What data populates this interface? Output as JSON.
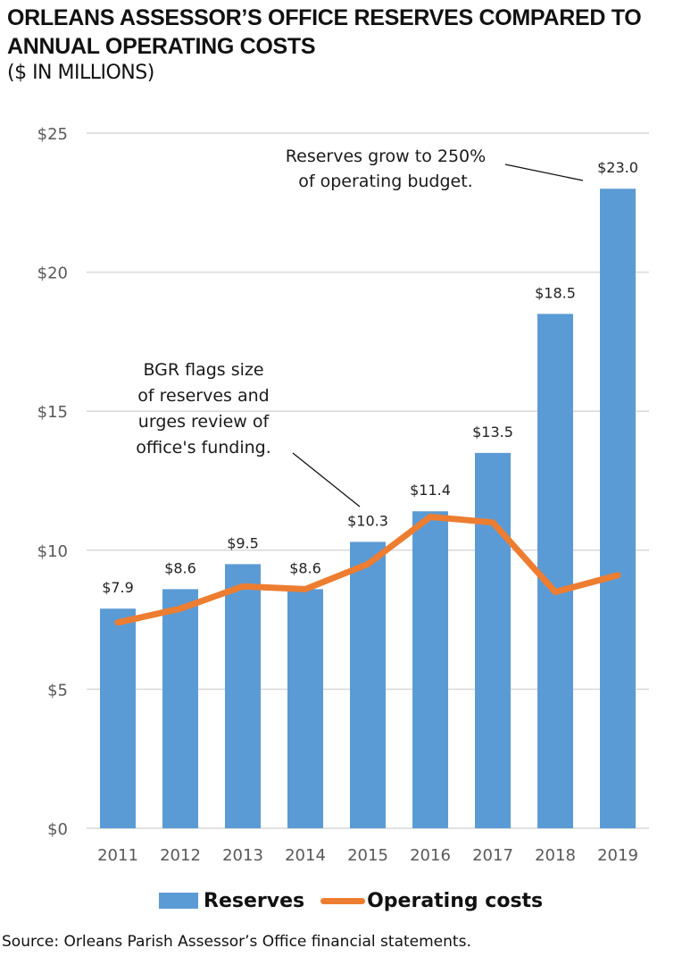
{
  "chart_data": {
    "type": "bar",
    "title": "ORLEANS ASSESSOR’S OFFICE RESERVES COMPARED TO ANNUAL OPERATING COSTS",
    "subtitle": "($ IN MILLIONS)",
    "xlabel": "",
    "ylabel": "",
    "categories": [
      "2011",
      "2012",
      "2013",
      "2014",
      "2015",
      "2016",
      "2017",
      "2018",
      "2019"
    ],
    "series": [
      {
        "name": "Reserves",
        "kind": "bar",
        "color": "#5b9bd5",
        "values": [
          7.9,
          8.6,
          9.5,
          8.6,
          10.3,
          11.4,
          13.5,
          18.5,
          23.0
        ],
        "labels": [
          "$7.9",
          "$8.6",
          "$9.5",
          "$8.6",
          "$10.3",
          "$11.4",
          "$13.5",
          "$18.5",
          "$23.0"
        ]
      },
      {
        "name": "Operating costs",
        "kind": "line",
        "color": "#ed7d31",
        "values": [
          7.4,
          7.9,
          8.7,
          8.6,
          9.5,
          11.2,
          11.0,
          8.5,
          9.1
        ]
      }
    ],
    "ylim": [
      0,
      25
    ],
    "yticks": [
      0,
      5,
      10,
      15,
      20,
      25
    ],
    "ytick_labels": [
      "$0",
      "$5",
      "$10",
      "$15",
      "$20",
      "$25"
    ],
    "grid": true,
    "legend": "bottom-center",
    "annotations": [
      {
        "lines": [
          "Reserves grow to 250%",
          "of operating budget."
        ],
        "target": "2019"
      },
      {
        "lines": [
          "BGR flags size",
          "of reserves and",
          "urges review of",
          "office's funding."
        ],
        "target": "2015"
      }
    ]
  },
  "header": {
    "title": "ORLEANS ASSESSOR’S OFFICE RESERVES COMPARED TO ANNUAL OPERATING COSTS",
    "subtitle": "($ IN MILLIONS)"
  },
  "legend": {
    "reserves": "Reserves",
    "operating": "Operating costs"
  },
  "source": "Source: Orleans Parish Assessor’s Office financial statements.",
  "colors": {
    "bar": "#5b9bd5",
    "line": "#ed7d31",
    "grid": "#d9d9d9",
    "tick": "#595959"
  }
}
